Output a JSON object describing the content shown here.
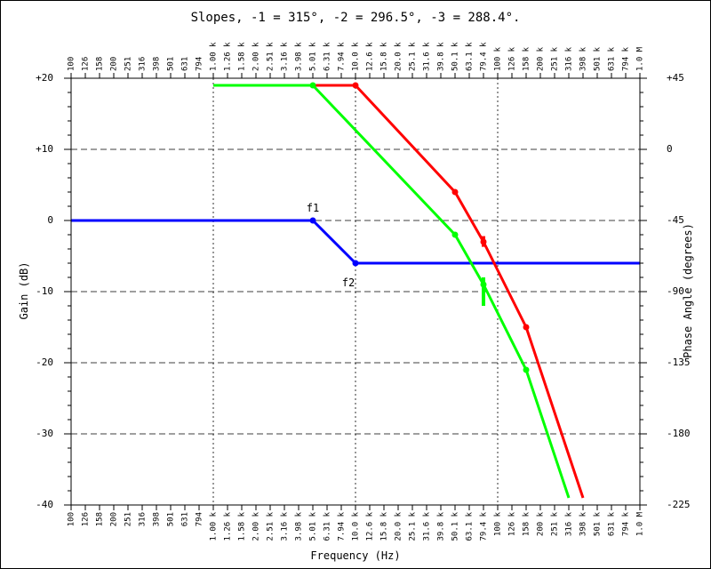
{
  "chart_data": {
    "type": "line",
    "title": "Slopes, -1 = 315°, -2 = 296.5°, -3 = 288.4°.",
    "xlabel": "Frequency (Hz)",
    "ylabel": "Gain (dB)",
    "y2label": "Phase Angle (degrees)",
    "x_scale": "log",
    "xlim": [
      100,
      1000000
    ],
    "ylim": [
      -40,
      20
    ],
    "y2lim": [
      -225,
      45
    ],
    "grid": true,
    "x_tick_labels": [
      "100",
      "126",
      "158",
      "200",
      "251",
      "316",
      "398",
      "501",
      "631",
      "794",
      "1.00 k",
      "1.26 k",
      "1.58 k",
      "2.00 k",
      "2.51 k",
      "3.16 k",
      "3.98 k",
      "5.01 k",
      "6.31 k",
      "7.94 k",
      "10.0 k",
      "12.6 k",
      "15.8 k",
      "20.0 k",
      "25.1 k",
      "31.6 k",
      "39.8 k",
      "50.1 k",
      "63.1 k",
      "79.4 k",
      "100 k",
      "126 k",
      "158 k",
      "200 k",
      "251 k",
      "316 k",
      "398 k",
      "501 k",
      "631 k",
      "794 k",
      "1.0 M"
    ],
    "y_tick_labels": [
      "+20",
      "+10",
      "0",
      "-10",
      "-20",
      "-30",
      "-40"
    ],
    "y2_tick_labels": [
      "+45",
      "0",
      "-45",
      "-90",
      "-135",
      "-180",
      "-225"
    ],
    "annotations": [
      "f1",
      "f2"
    ],
    "series": [
      {
        "color": "#0000ff",
        "points": [
          [
            100,
            0
          ],
          [
            5012,
            0
          ],
          [
            10000,
            -6
          ],
          [
            1000000,
            -6
          ]
        ],
        "markers": [
          [
            5012,
            0
          ],
          [
            10000,
            -6
          ]
        ]
      },
      {
        "color": "#ff0000",
        "points": [
          [
            1000,
            19
          ],
          [
            10000,
            19
          ],
          [
            50119,
            4
          ],
          [
            79433,
            -3
          ],
          [
            158489,
            -15
          ],
          [
            398107,
            -39
          ]
        ],
        "markers": [
          [
            10000,
            19
          ],
          [
            50119,
            4
          ],
          [
            79433,
            -3
          ],
          [
            158489,
            -15
          ]
        ],
        "ticks": [
          [
            79433,
            -2.2,
            -3.7
          ]
        ]
      },
      {
        "color": "#00ff00",
        "points": [
          [
            1000,
            19
          ],
          [
            5012,
            19
          ],
          [
            50119,
            -2
          ],
          [
            79433,
            -9
          ],
          [
            158489,
            -21
          ],
          [
            316228,
            -39
          ]
        ],
        "markers": [
          [
            5012,
            19
          ],
          [
            50119,
            -2
          ],
          [
            79433,
            -9
          ],
          [
            158489,
            -21
          ]
        ],
        "ticks": [
          [
            79433,
            -8,
            -12
          ]
        ]
      }
    ]
  }
}
